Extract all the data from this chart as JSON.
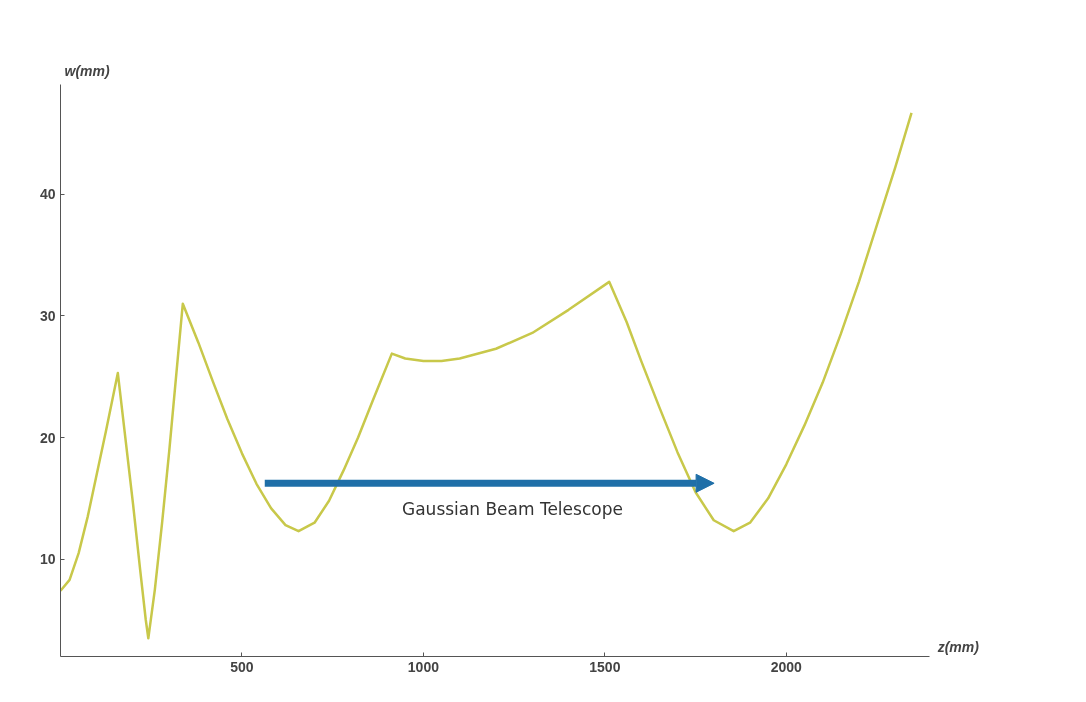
{
  "chart_data": {
    "type": "line",
    "xlabel": "z(mm)",
    "ylabel": "w(mm)",
    "x": [
      0,
      25,
      50,
      75,
      100,
      125,
      158,
      200,
      220,
      235,
      242,
      260,
      280,
      300,
      320,
      337,
      380,
      420,
      460,
      500,
      540,
      580,
      620,
      656,
      700,
      740,
      780,
      820,
      860,
      913,
      950,
      1000,
      1050,
      1100,
      1200,
      1300,
      1400,
      1512,
      1560,
      1600,
      1650,
      1700,
      1750,
      1800,
      1855,
      1900,
      1950,
      2000,
      2050,
      2100,
      2150,
      2200,
      2250,
      2300,
      2345
    ],
    "series": [
      {
        "color": "#c8c84a",
        "values": [
          7.4,
          8.3,
          10.5,
          13.5,
          17,
          20.5,
          25.3,
          14.5,
          9,
          5,
          3.5,
          7.5,
          13,
          19,
          25.5,
          31,
          27.8,
          24.6,
          21.5,
          18.7,
          16.2,
          14.2,
          12.8,
          12.3,
          13.0,
          14.8,
          17.3,
          20.0,
          23.0,
          26.9,
          26.5,
          26.3,
          26.3,
          26.5,
          27.3,
          28.6,
          30.5,
          32.8,
          29.5,
          26.3,
          22.5,
          18.8,
          15.5,
          13.2,
          12.3,
          13.0,
          15.0,
          17.8,
          21.0,
          24.5,
          28.5,
          32.8,
          37.5,
          42.2,
          46.7
        ]
      }
    ],
    "xlim": [
      0,
      2395
    ],
    "ylim": [
      2,
      49
    ],
    "xticks": [
      500,
      1000,
      1500,
      2000
    ],
    "yticks": [
      10,
      20,
      30,
      40
    ],
    "grid": false,
    "marker": "none",
    "line_style": "solid",
    "annotations": [
      "Gaussian Beam Telescope"
    ]
  }
}
